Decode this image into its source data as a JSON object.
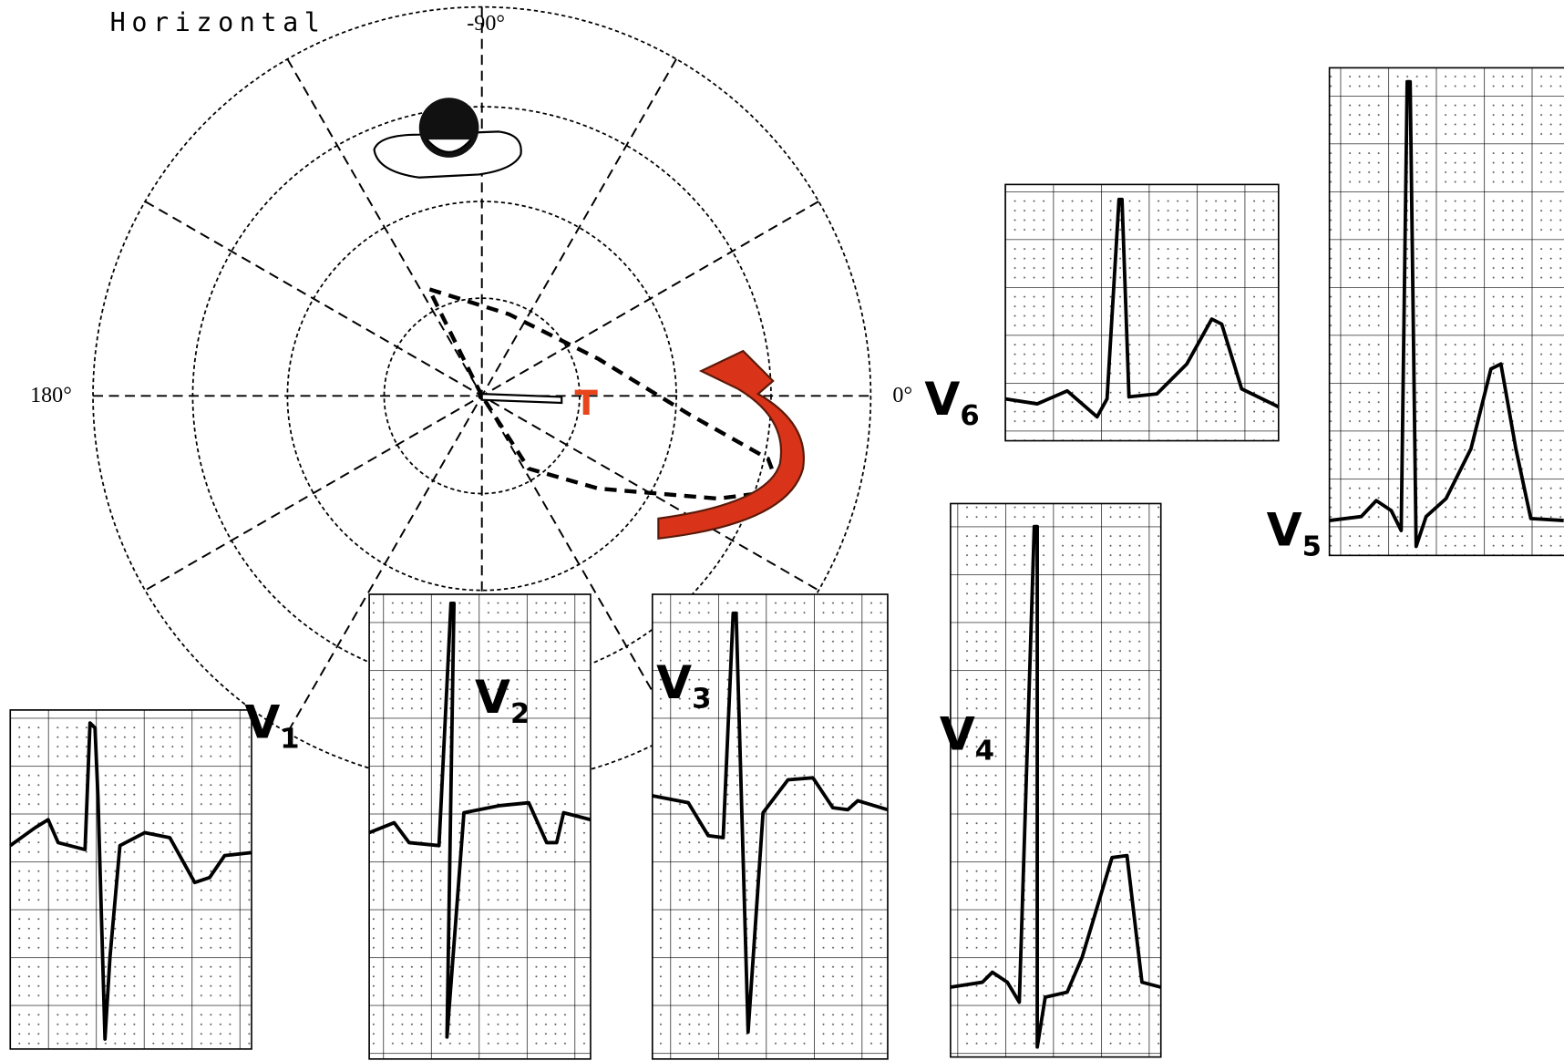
{
  "title": "Horizontal",
  "angles": {
    "top": "-90°",
    "left": "180°",
    "right": "0°"
  },
  "vector_label": "T",
  "leads": [
    {
      "letter": "V",
      "number": "1"
    },
    {
      "letter": "V",
      "number": "2"
    },
    {
      "letter": "V",
      "number": "3"
    },
    {
      "letter": "V",
      "number": "4"
    },
    {
      "letter": "V",
      "number": "5"
    },
    {
      "letter": "V",
      "number": "6"
    }
  ]
}
